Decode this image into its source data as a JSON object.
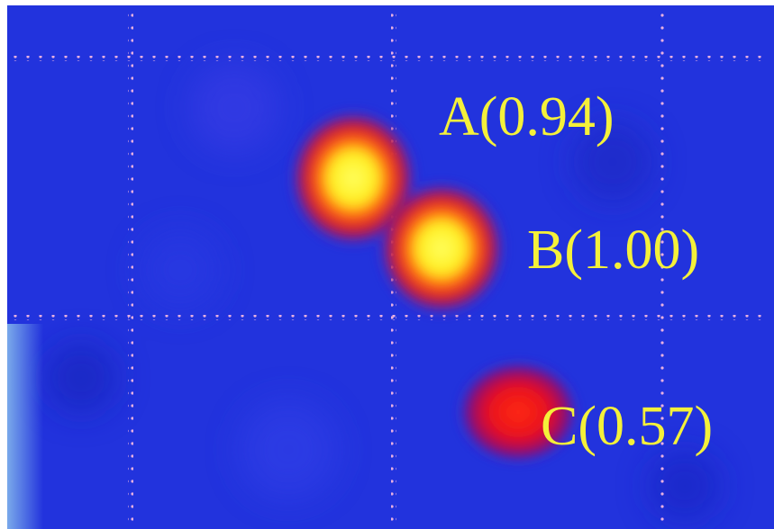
{
  "labels": [
    "A(0.94)",
    "B(1.00)",
    "C(0.57)"
  ]
}
